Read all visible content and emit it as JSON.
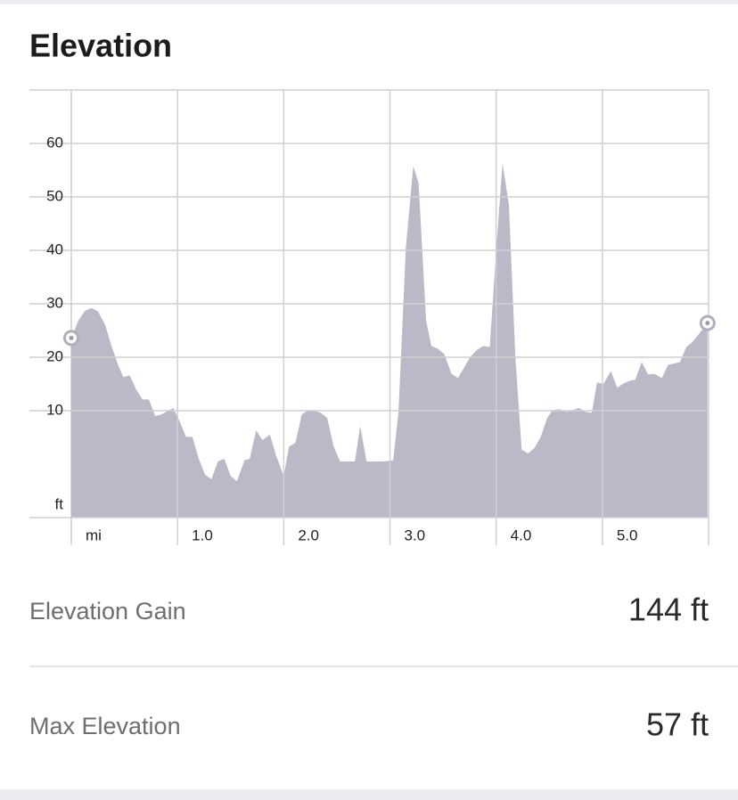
{
  "header": {
    "title": "Elevation"
  },
  "chart_data": {
    "type": "area",
    "color": "#b9b9c7",
    "x_unit": "mi",
    "y_unit": "ft",
    "xlim": [
      0,
      6
    ],
    "ylim": [
      -10,
      70
    ],
    "grid": true,
    "xticks": [
      {
        "value": 1,
        "label": "1.0"
      },
      {
        "value": 2,
        "label": "2.0"
      },
      {
        "value": 3,
        "label": "3.0"
      },
      {
        "value": 4,
        "label": "4.0"
      },
      {
        "value": 5,
        "label": "5.0"
      }
    ],
    "yticks": [
      10,
      20,
      30,
      40,
      50,
      60
    ],
    "x": [
      0,
      0.07,
      0.13,
      0.19,
      0.25,
      0.32,
      0.38,
      0.44,
      0.49,
      0.55,
      0.61,
      0.67,
      0.73,
      0.79,
      0.85,
      0.91,
      0.96,
      1.02,
      1.08,
      1.14,
      1.2,
      1.26,
      1.32,
      1.38,
      1.44,
      1.5,
      1.56,
      1.63,
      1.68,
      1.74,
      1.8,
      1.87,
      1.93,
      2.0,
      2.05,
      2.11,
      2.17,
      2.23,
      2.29,
      2.35,
      2.41,
      2.47,
      2.53,
      2.58,
      2.67,
      2.72,
      2.78,
      2.85,
      2.93,
      3.03,
      3.08,
      3.15,
      3.22,
      3.27,
      3.34,
      3.39,
      3.45,
      3.51,
      3.58,
      3.64,
      3.7,
      3.75,
      3.82,
      3.88,
      3.94,
      4.0,
      4.06,
      4.12,
      4.18,
      4.24,
      4.3,
      4.36,
      4.42,
      4.48,
      4.53,
      4.59,
      4.66,
      4.72,
      4.78,
      4.84,
      4.9,
      4.95,
      5.01,
      5.08,
      5.14,
      5.2,
      5.26,
      5.31,
      5.37,
      5.43,
      5.49,
      5.56,
      5.62,
      5.67,
      5.73,
      5.79,
      5.85,
      5.91,
      5.99
    ],
    "values": [
      23.6,
      27,
      28.7,
      29.2,
      28.6,
      26,
      22,
      18.6,
      16.3,
      16.6,
      14,
      12.1,
      12.1,
      9,
      9.3,
      10,
      10.5,
      8,
      5.1,
      5.1,
      1,
      -2,
      -2.8,
      0.5,
      1,
      -2.2,
      -3.2,
      0.7,
      1,
      6.3,
      4.5,
      5.5,
      1.5,
      -2.2,
      3.3,
      4,
      9.3,
      10.1,
      10,
      9.6,
      8.6,
      3.3,
      0.5,
      0.5,
      0.5,
      7.1,
      0.5,
      0.5,
      0.5,
      0.7,
      9.6,
      40.5,
      55.8,
      52.5,
      26.9,
      22.1,
      21.6,
      20.6,
      16.9,
      16.1,
      18.1,
      19.9,
      21.4,
      22.1,
      21.9,
      39.9,
      56.3,
      48.5,
      20.3,
      2.7,
      2,
      3,
      5.1,
      8.6,
      10.1,
      10.3,
      9.8,
      10.1,
      10.5,
      9.8,
      9.6,
      15.3,
      15,
      17.4,
      14.3,
      15.1,
      15.6,
      15.8,
      19.1,
      16.8,
      16.9,
      16.1,
      18.6,
      18.8,
      19.1,
      21.9,
      22.9,
      24.4,
      26.4
    ]
  },
  "stats": [
    {
      "label": "Elevation Gain",
      "value": "144 ft"
    },
    {
      "label": "Max Elevation",
      "value": "57 ft"
    }
  ]
}
